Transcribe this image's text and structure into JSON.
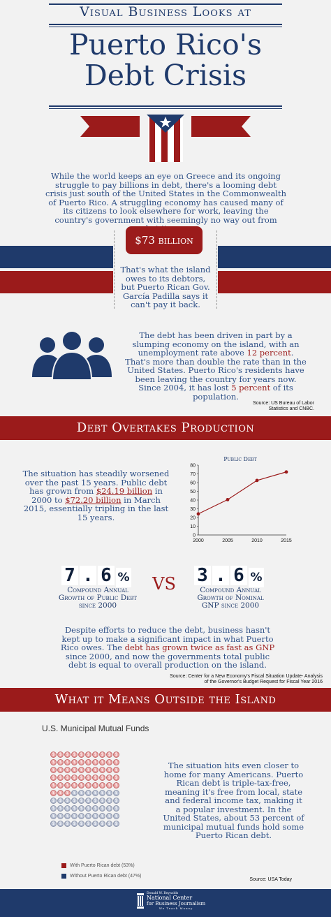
{
  "header": {
    "kicker": "Visual Business Looks at",
    "title_line1": "Puerto Rico's",
    "title_line2": "Debt Crisis"
  },
  "intro": {
    "text": "While the world keeps an eye on Greece and its ongoing struggle to pay billions in debt, there's a looming debt crisis just south of the United States in the Commonwealth of Puerto Rico. A struggling economy has caused many of its citizens to look elsewhere for work, leaving the country's government with seemingly no way out from what it owes."
  },
  "debt_badge": {
    "amount": "$73 billion",
    "caption": "That's what the island owes to its debtors, but Puerto Rican Gov. García Padilla says it can't pay it back."
  },
  "population": {
    "text_a": "The debt has been driven in part by a slumping economy on the island, with an unemployment rate above ",
    "highlight_a": "12 percent",
    "text_b": ". That's more than double the rate than in the United States.  Puerto Rico's residents have been leaving the country for years now. Since 2004, it has lost ",
    "highlight_b": "5 percent",
    "text_c": " of its population.",
    "source": "Source: US Bureau of Labor Statistics and CNBC."
  },
  "section1": {
    "title": "Debt Overtakes Production",
    "text_a": "The situation has steadily worsened  over the past 15 years. Public debt has grown from ",
    "highlight_a": "$24.19 billion",
    "text_b": " in 2000 to ",
    "highlight_b": "$72.20 billion",
    "text_c": " in March 2015, essentially tripling in the last 15 years."
  },
  "chart_data": {
    "type": "line",
    "title": "Public Debt",
    "x": [
      2000,
      2005,
      2010,
      2015
    ],
    "series": [
      {
        "values": [
          24.19,
          40.5,
          62.5,
          72.2
        ]
      }
    ],
    "ylim": [
      0,
      80
    ],
    "yticks": [
      0,
      10,
      20,
      30,
      40,
      50,
      60,
      70,
      80
    ],
    "xticks": [
      "2000",
      "2005",
      "2010",
      "2015"
    ],
    "grid": false,
    "line_color": "#9b1b1b"
  },
  "growth": {
    "left_digits": [
      "7",
      ".",
      "6"
    ],
    "left_pct": "%",
    "left_caption": "Compound Annual Growth of Public Debt since 2000",
    "vs": "VS",
    "right_digits": [
      "3",
      ".",
      "6"
    ],
    "right_pct": "%",
    "right_caption": "Compound Annual Growth of Nominal GNP since 2000",
    "text_a": "Despite efforts to reduce the debt, business hasn't kept up to make a significant impact in what Puerto Rico owes. The ",
    "highlight": "debt has grown twice as fast as GNP",
    "text_b": " since 2000, and now the governments total public debt is equal to overall production on the island.",
    "source": "Source: Center for a New Economy's Fiscal Situation Update- Analysis of the Governor's Budget Request for Fiscal Year 2016"
  },
  "section2": {
    "title": "What it Means Outside the Island",
    "subtitle": "U.S. Municipal Mutual Funds",
    "text": "The situation hits even closer to home for many Americans. Puerto Rican debt is triple-tax-free, meaning it's free from local, state and federal income tax, making it a popular investment. In the United States, about 53 percent of municipal mutual funds hold some Puerto Rican debt.",
    "legend_with": "With Puerto Rican debt (53%)",
    "legend_without": "Without Puerto Rican debt (47%)",
    "with_pct": 53,
    "source": "Source: USA Today",
    "coin_symbol": "$"
  },
  "footer": {
    "logo_small": "Donald W. Reynolds",
    "logo_line1": "National Center",
    "logo_line2": "for Business Journalism",
    "tagline": "We Teach Money"
  },
  "colors": {
    "navy": "#1f3a6b",
    "red": "#9b1b1b",
    "coin_red": "#e9a3a3",
    "coin_blue": "#b8c0d2"
  }
}
